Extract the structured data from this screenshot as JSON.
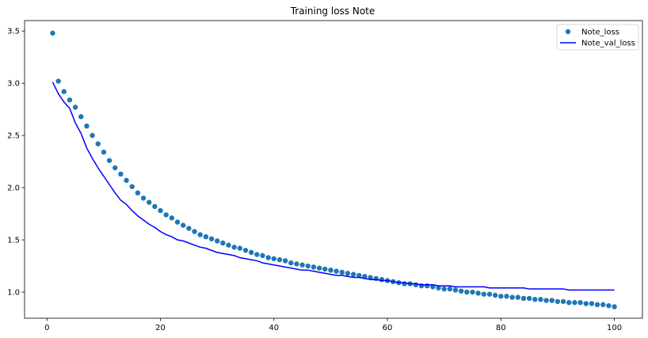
{
  "chart_data": {
    "type": "line",
    "title": "Training loss Note",
    "xlabel": "",
    "ylabel": "",
    "xlim": [
      -3.95,
      104.95
    ],
    "ylim": [
      0.75,
      3.6
    ],
    "xticks": [
      0,
      20,
      40,
      60,
      80,
      100
    ],
    "yticks": [
      1.0,
      1.5,
      2.0,
      2.5,
      3.0,
      3.5
    ],
    "ytick_labels": [
      "1.0",
      "1.5",
      "2.0",
      "2.5",
      "3.0",
      "3.5"
    ],
    "grid": false,
    "legend_position": "top-right",
    "series": [
      {
        "name": "Note_loss",
        "kind": "scatter",
        "color": "#1f77b4",
        "x": [
          1,
          2,
          3,
          4,
          5,
          6,
          7,
          8,
          9,
          10,
          11,
          12,
          13,
          14,
          15,
          16,
          17,
          18,
          19,
          20,
          21,
          22,
          23,
          24,
          25,
          26,
          27,
          28,
          29,
          30,
          31,
          32,
          33,
          34,
          35,
          36,
          37,
          38,
          39,
          40,
          41,
          42,
          43,
          44,
          45,
          46,
          47,
          48,
          49,
          50,
          51,
          52,
          53,
          54,
          55,
          56,
          57,
          58,
          59,
          60,
          61,
          62,
          63,
          64,
          65,
          66,
          67,
          68,
          69,
          70,
          71,
          72,
          73,
          74,
          75,
          76,
          77,
          78,
          79,
          80,
          81,
          82,
          83,
          84,
          85,
          86,
          87,
          88,
          89,
          90,
          91,
          92,
          93,
          94,
          95,
          96,
          97,
          98,
          99,
          100
        ],
        "y": [
          3.48,
          3.02,
          2.92,
          2.84,
          2.77,
          2.68,
          2.59,
          2.5,
          2.42,
          2.34,
          2.26,
          2.19,
          2.13,
          2.07,
          2.01,
          1.95,
          1.9,
          1.86,
          1.82,
          1.78,
          1.74,
          1.71,
          1.67,
          1.64,
          1.61,
          1.58,
          1.55,
          1.53,
          1.51,
          1.49,
          1.47,
          1.45,
          1.43,
          1.42,
          1.4,
          1.38,
          1.36,
          1.35,
          1.33,
          1.32,
          1.31,
          1.3,
          1.28,
          1.27,
          1.26,
          1.25,
          1.24,
          1.23,
          1.22,
          1.21,
          1.2,
          1.19,
          1.18,
          1.17,
          1.16,
          1.15,
          1.14,
          1.13,
          1.12,
          1.11,
          1.1,
          1.09,
          1.08,
          1.08,
          1.07,
          1.06,
          1.06,
          1.05,
          1.04,
          1.03,
          1.03,
          1.02,
          1.01,
          1.0,
          1.0,
          0.99,
          0.98,
          0.98,
          0.97,
          0.96,
          0.96,
          0.95,
          0.95,
          0.94,
          0.94,
          0.93,
          0.93,
          0.92,
          0.92,
          0.91,
          0.91,
          0.9,
          0.9,
          0.9,
          0.89,
          0.89,
          0.88,
          0.88,
          0.87,
          0.86
        ]
      },
      {
        "name": "Note_val_loss",
        "kind": "line",
        "color": "#0000ff",
        "x": [
          1,
          2,
          3,
          4,
          5,
          6,
          7,
          8,
          9,
          10,
          11,
          12,
          13,
          14,
          15,
          16,
          17,
          18,
          19,
          20,
          21,
          22,
          23,
          24,
          25,
          26,
          27,
          28,
          29,
          30,
          31,
          32,
          33,
          34,
          35,
          36,
          37,
          38,
          39,
          40,
          41,
          42,
          43,
          44,
          45,
          46,
          47,
          48,
          49,
          50,
          51,
          52,
          53,
          54,
          55,
          56,
          57,
          58,
          59,
          60,
          61,
          62,
          63,
          64,
          65,
          66,
          67,
          68,
          69,
          70,
          71,
          72,
          73,
          74,
          75,
          76,
          77,
          78,
          79,
          80,
          81,
          82,
          83,
          84,
          85,
          86,
          87,
          88,
          89,
          90,
          91,
          92,
          93,
          94,
          95,
          96,
          97,
          98,
          99,
          100
        ],
        "y": [
          3.01,
          2.9,
          2.82,
          2.76,
          2.62,
          2.52,
          2.38,
          2.28,
          2.19,
          2.11,
          2.03,
          1.95,
          1.88,
          1.84,
          1.78,
          1.73,
          1.69,
          1.65,
          1.62,
          1.58,
          1.55,
          1.53,
          1.5,
          1.49,
          1.47,
          1.45,
          1.43,
          1.42,
          1.4,
          1.38,
          1.37,
          1.36,
          1.35,
          1.33,
          1.32,
          1.31,
          1.3,
          1.28,
          1.27,
          1.26,
          1.25,
          1.24,
          1.23,
          1.22,
          1.21,
          1.21,
          1.2,
          1.19,
          1.18,
          1.17,
          1.16,
          1.16,
          1.15,
          1.14,
          1.14,
          1.13,
          1.12,
          1.12,
          1.11,
          1.11,
          1.1,
          1.09,
          1.09,
          1.08,
          1.08,
          1.07,
          1.07,
          1.07,
          1.06,
          1.06,
          1.06,
          1.05,
          1.05,
          1.05,
          1.05,
          1.05,
          1.05,
          1.04,
          1.04,
          1.04,
          1.04,
          1.04,
          1.04,
          1.04,
          1.03,
          1.03,
          1.03,
          1.03,
          1.03,
          1.03,
          1.03,
          1.02,
          1.02,
          1.02,
          1.02,
          1.02,
          1.02,
          1.02,
          1.02,
          1.02
        ]
      }
    ]
  }
}
